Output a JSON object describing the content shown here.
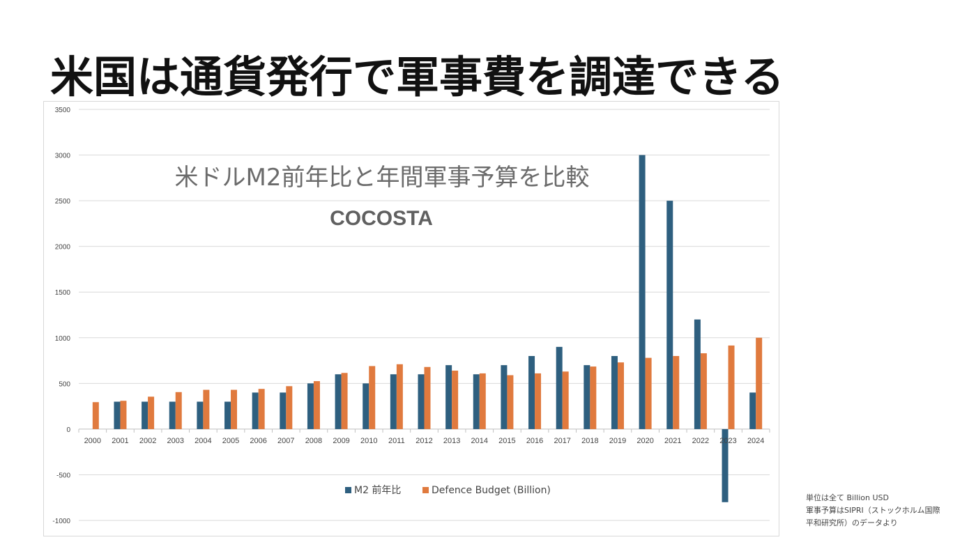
{
  "slide": {
    "title": "米国は通貨発行で軍事費を調達できる"
  },
  "footnote": {
    "lines": [
      "単位は全て Billion USD",
      "軍事予算はSIPRI（ストックホルム国際",
      "平和研究所）のデータより"
    ]
  },
  "colors": {
    "m2": "#2e5f7f",
    "defence": "#e07a3e"
  },
  "chart_data": {
    "type": "bar",
    "title": "米ドルM2前年比と年間軍事予算を比較",
    "subtitle": "COCOSTA",
    "categories": [
      "2000",
      "2001",
      "2002",
      "2003",
      "2004",
      "2005",
      "2006",
      "2007",
      "2008",
      "2009",
      "2010",
      "2011",
      "2012",
      "2013",
      "2014",
      "2015",
      "2016",
      "2017",
      "2018",
      "2019",
      "2020",
      "2021",
      "2022",
      "2023",
      "2024"
    ],
    "series": [
      {
        "name": "M2 前年比",
        "values": [
          0,
          300,
          300,
          300,
          300,
          300,
          400,
          400,
          500,
          600,
          500,
          600,
          600,
          700,
          600,
          700,
          800,
          900,
          700,
          800,
          3000,
          2500,
          1200,
          -800,
          400
        ]
      },
      {
        "name": "Defence Budget (Billion)",
        "values": [
          295,
          310,
          355,
          405,
          430,
          430,
          440,
          470,
          525,
          615,
          690,
          710,
          680,
          640,
          610,
          590,
          610,
          630,
          685,
          730,
          780,
          800,
          830,
          915,
          1000
        ]
      }
    ],
    "yticks": [
      3500,
      3000,
      2500,
      2000,
      1500,
      1000,
      500,
      0,
      -500,
      -1000
    ],
    "ylim": [
      -1000,
      3500
    ],
    "legend": "bottom",
    "grid": true
  }
}
